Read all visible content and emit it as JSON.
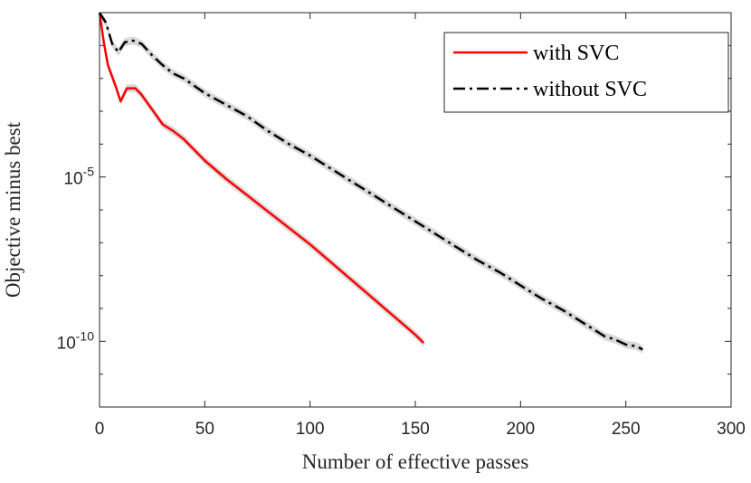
{
  "chart_data": {
    "type": "line",
    "title": "",
    "xlabel": "Number of effective passes",
    "ylabel": "Objective minus best",
    "yscale": "log",
    "xlim": [
      0,
      300
    ],
    "ylim_log10": [
      -12,
      0
    ],
    "x_ticks": [
      0,
      50,
      100,
      150,
      200,
      250,
      300
    ],
    "x_tick_labels": [
      "0",
      "50",
      "100",
      "150",
      "200",
      "250",
      "300"
    ],
    "y_ticks_log10": [
      -5,
      -10
    ],
    "y_tick_labels": [
      {
        "base": "10",
        "exp": "-5"
      },
      {
        "base": "10",
        "exp": "-10"
      }
    ],
    "legend_position": "top-right",
    "series": [
      {
        "name": "with SVC",
        "color": "#ff0000",
        "dash": "solid",
        "band_color": "#cfcfcf",
        "points_log10": [
          [
            0,
            0.0
          ],
          [
            2,
            -0.9
          ],
          [
            4,
            -1.6
          ],
          [
            6,
            -1.95
          ],
          [
            8,
            -2.3
          ],
          [
            10,
            -2.7
          ],
          [
            13,
            -2.3
          ],
          [
            17,
            -2.3
          ],
          [
            20,
            -2.5
          ],
          [
            25,
            -2.95
          ],
          [
            30,
            -3.4
          ],
          [
            35,
            -3.6
          ],
          [
            40,
            -3.85
          ],
          [
            50,
            -4.5
          ],
          [
            60,
            -5.05
          ],
          [
            70,
            -5.55
          ],
          [
            80,
            -6.05
          ],
          [
            90,
            -6.55
          ],
          [
            100,
            -7.05
          ],
          [
            110,
            -7.6
          ],
          [
            120,
            -8.15
          ],
          [
            130,
            -8.7
          ],
          [
            140,
            -9.25
          ],
          [
            150,
            -9.8
          ],
          [
            154,
            -10.05
          ]
        ]
      },
      {
        "name": "without SVC",
        "color": "#000000",
        "dash": "dash-dot",
        "band_color": "#cfcfcf",
        "points_log10": [
          [
            0,
            0.0
          ],
          [
            3,
            -0.3
          ],
          [
            6,
            -0.95
          ],
          [
            9,
            -1.2
          ],
          [
            12,
            -0.9
          ],
          [
            16,
            -0.85
          ],
          [
            20,
            -0.95
          ],
          [
            25,
            -1.3
          ],
          [
            30,
            -1.6
          ],
          [
            35,
            -1.85
          ],
          [
            40,
            -2.0
          ],
          [
            50,
            -2.45
          ],
          [
            60,
            -2.8
          ],
          [
            70,
            -3.15
          ],
          [
            80,
            -3.6
          ],
          [
            90,
            -4.0
          ],
          [
            100,
            -4.35
          ],
          [
            110,
            -4.75
          ],
          [
            120,
            -5.15
          ],
          [
            130,
            -5.55
          ],
          [
            140,
            -5.95
          ],
          [
            150,
            -6.35
          ],
          [
            160,
            -6.75
          ],
          [
            170,
            -7.15
          ],
          [
            180,
            -7.55
          ],
          [
            190,
            -7.9
          ],
          [
            200,
            -8.3
          ],
          [
            210,
            -8.7
          ],
          [
            220,
            -9.05
          ],
          [
            230,
            -9.45
          ],
          [
            240,
            -9.85
          ],
          [
            245,
            -9.95
          ],
          [
            250,
            -10.1
          ],
          [
            255,
            -10.15
          ],
          [
            258,
            -10.25
          ]
        ]
      }
    ]
  }
}
